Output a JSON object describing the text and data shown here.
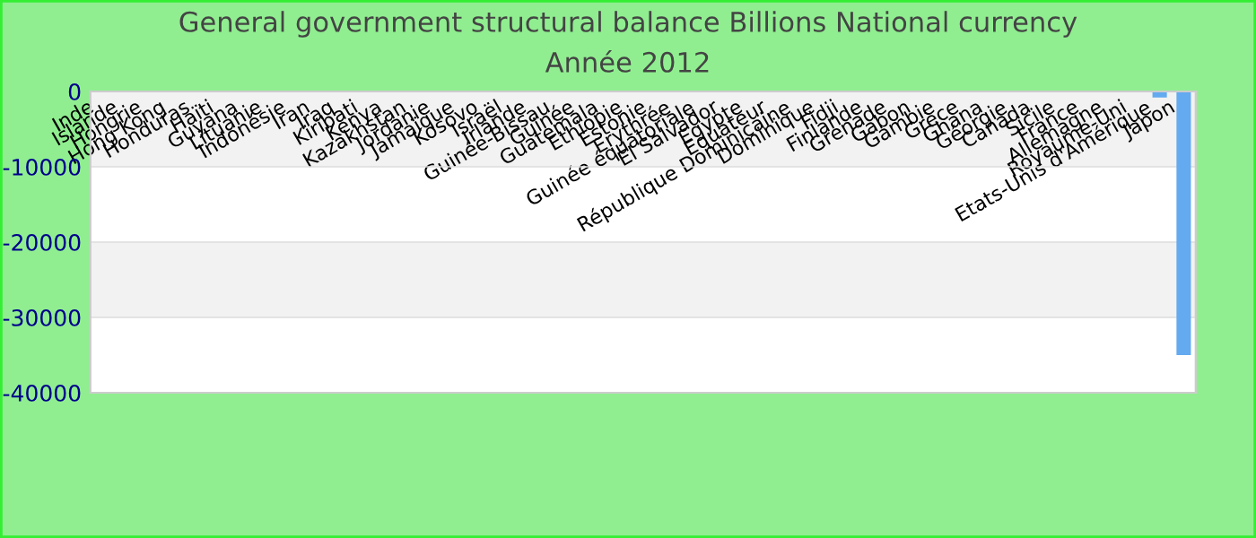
{
  "chart_data": {
    "type": "bar",
    "title": "General government structural balance Billions National currency",
    "subtitle": "Année 2012",
    "categories": [
      "Inde",
      "Islande",
      "Hongrie",
      "Hong Kong",
      "Honduras",
      "Haïti",
      "Guyana",
      "Lituanie",
      "Indonésie",
      "Iran",
      "Iraq",
      "Kiribati",
      "Kenya",
      "Kazakhstan",
      "Jordanie",
      "Jamaïque",
      "Kosovo",
      "Israël",
      "Irlande",
      "Guinée-Bissau",
      "Guinée",
      "Guatemala",
      "Ethiopie",
      "Estonie",
      "Erythrée",
      "Guinée équatoriale",
      "El Salvador",
      "Egypte",
      "Equateur",
      "République Dominicaine",
      "Dominique",
      "Fidji",
      "Finlande",
      "Grenade",
      "Gabon",
      "Gambie",
      "Grèce",
      "Ghana",
      "Géorgie",
      "Canada",
      "Sicile",
      "France",
      "Allemagne",
      "Royaume-Uni",
      "Etats-Unis d'Amérique",
      "Japon"
    ],
    "values": [
      0,
      0,
      0,
      0,
      0,
      0,
      0,
      0,
      0,
      0,
      0,
      0,
      0,
      0,
      0,
      0,
      0,
      0,
      0,
      0,
      0,
      0,
      0,
      0,
      0,
      0,
      0,
      0,
      0,
      0,
      0,
      0,
      0,
      0,
      0,
      0,
      0,
      0,
      0,
      0,
      0,
      0,
      0,
      0,
      -800,
      -35000
    ],
    "color": "#63aaf0",
    "ylim": [
      -40000,
      0
    ],
    "yticks": [
      -40000,
      -30000,
      -20000,
      -10000,
      0
    ],
    "grid": "y"
  }
}
